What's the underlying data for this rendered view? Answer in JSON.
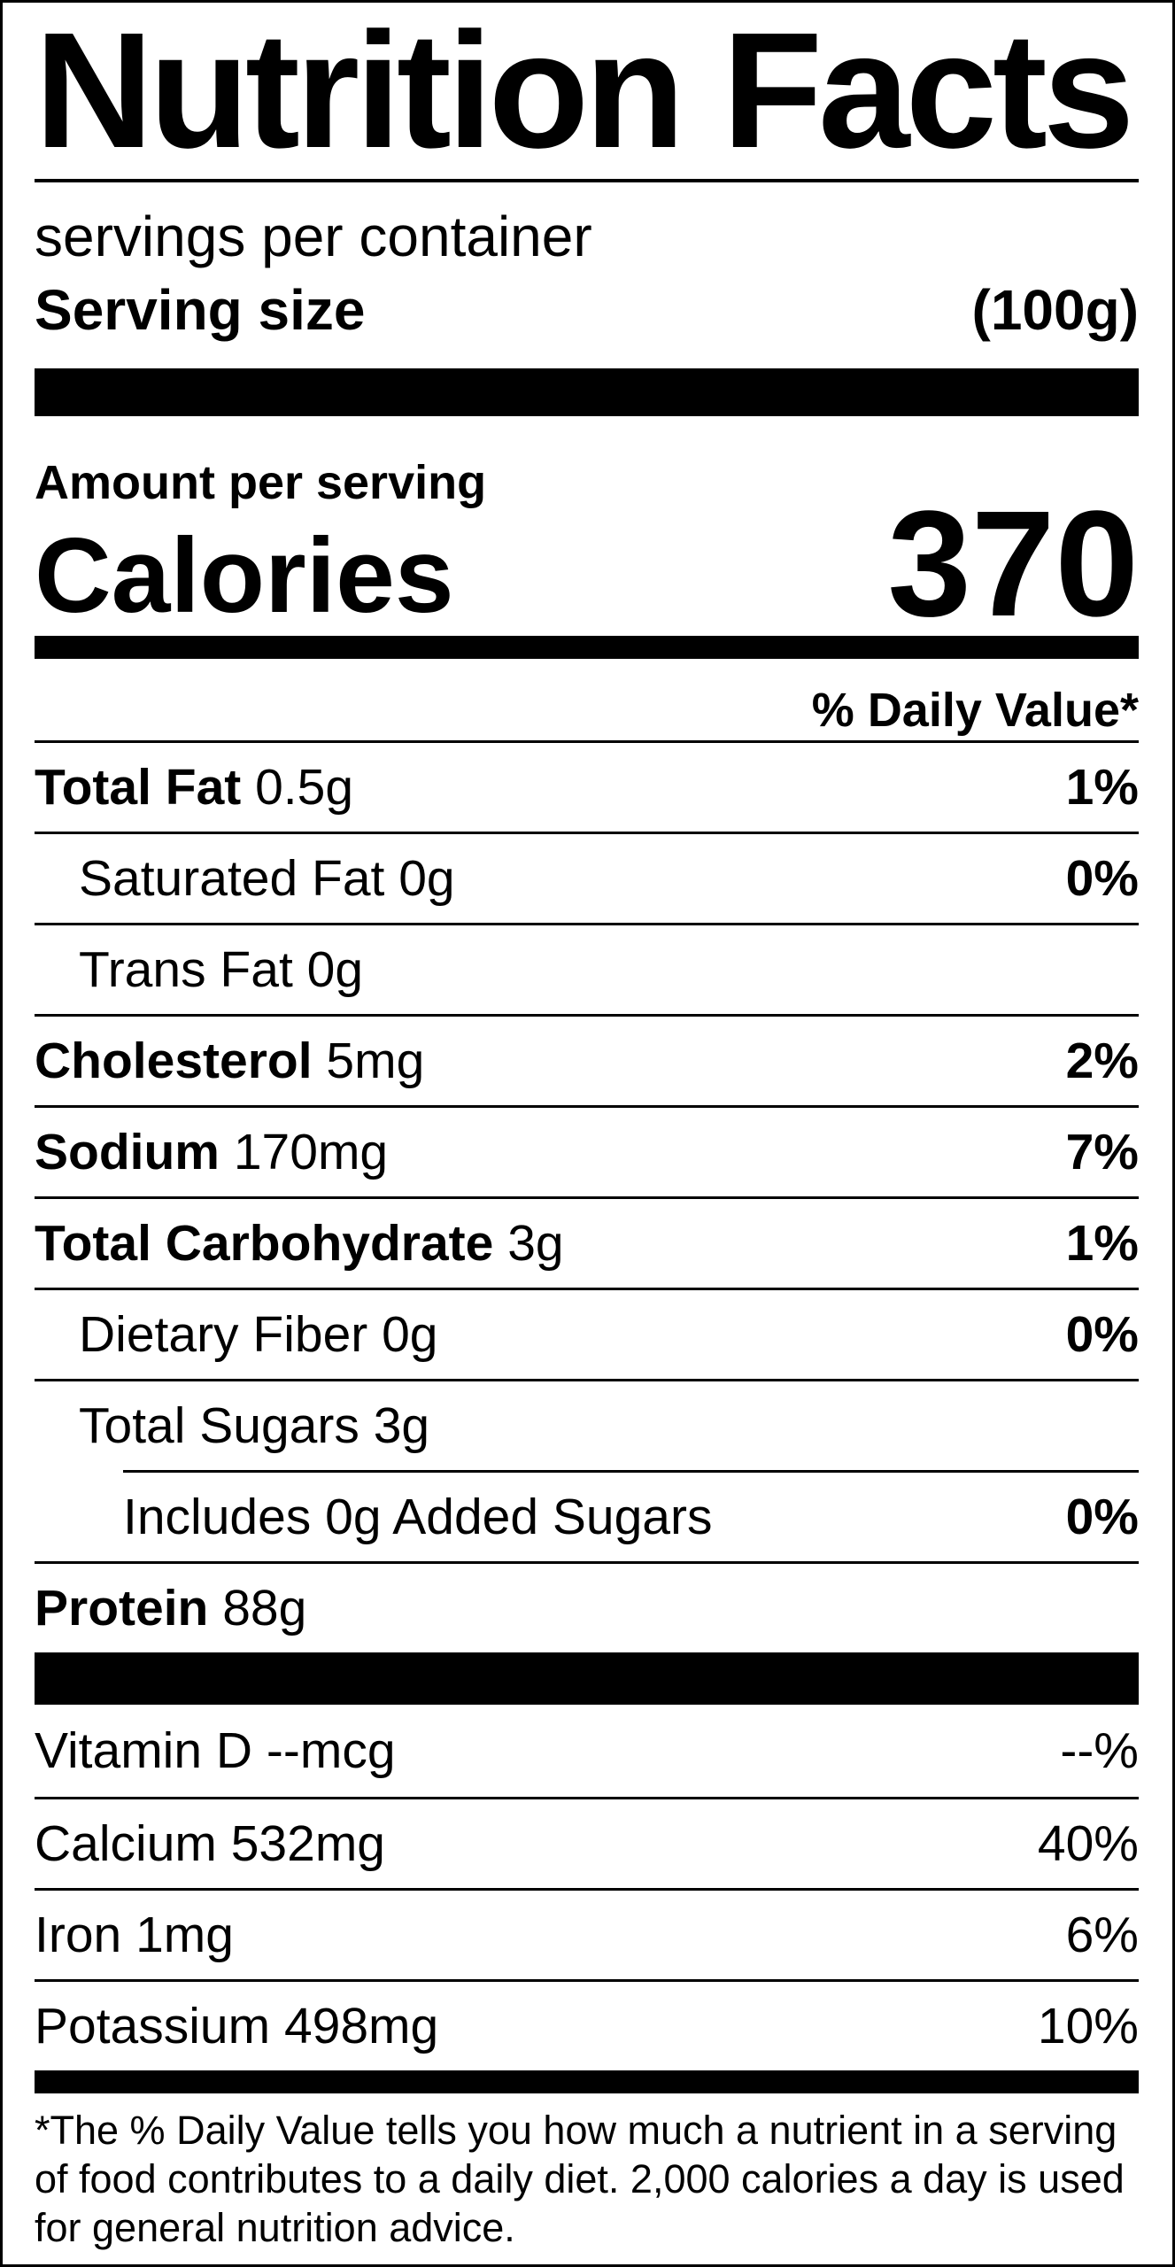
{
  "title": "Nutrition Facts",
  "servings_per_container": "servings per container",
  "serving_size": {
    "label": "Serving size",
    "value": "(100g)"
  },
  "amount_per_serving": "Amount per serving",
  "calories": {
    "label": "Calories",
    "value": "370"
  },
  "daily_value_header": "% Daily Value*",
  "nutrients": [
    {
      "name": "Total Fat",
      "amount": "0.5g",
      "dv": "1%"
    },
    {
      "name": "Saturated Fat",
      "amount": "0g",
      "dv": "0%"
    },
    {
      "name": "Trans Fat",
      "amount": "0g",
      "dv": ""
    },
    {
      "name": "Cholesterol",
      "amount": "5mg",
      "dv": "2%"
    },
    {
      "name": "Sodium",
      "amount": "170mg",
      "dv": "7%"
    },
    {
      "name": "Total Carbohydrate",
      "amount": "3g",
      "dv": "1%"
    },
    {
      "name": "Dietary Fiber",
      "amount": "0g",
      "dv": "0%"
    },
    {
      "name": "Total Sugars",
      "amount": "3g",
      "dv": ""
    },
    {
      "name": "Includes 0g Added Sugars",
      "amount": "",
      "dv": "0%"
    },
    {
      "name": "Protein",
      "amount": "88g",
      "dv": ""
    }
  ],
  "vitamins": [
    {
      "name": "Vitamin D",
      "amount": "--mcg",
      "dv": "--%"
    },
    {
      "name": "Calcium",
      "amount": "532mg",
      "dv": "40%"
    },
    {
      "name": "Iron",
      "amount": "1mg",
      "dv": "6%"
    },
    {
      "name": "Potassium",
      "amount": "498mg",
      "dv": "10%"
    }
  ],
  "footnote": "*The % Daily Value tells you how much a nutrient in a serving of food contributes to a daily diet. 2,000 calories a day is used for general nutrition advice."
}
